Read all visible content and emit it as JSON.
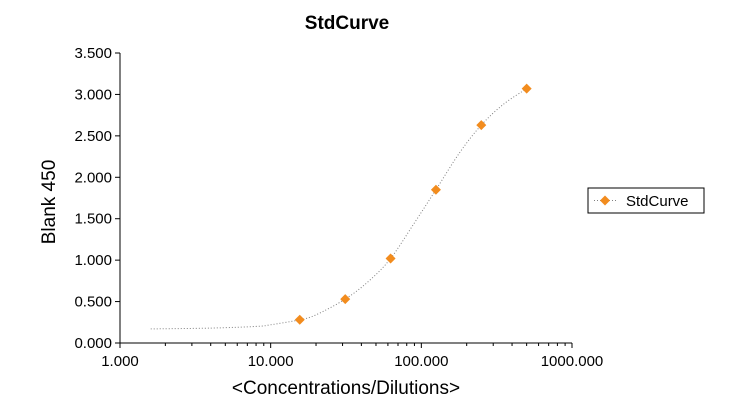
{
  "chart_data": {
    "type": "scatter",
    "title": "StdCurve",
    "xlabel": "<Concentrations/Dilutions>",
    "ylabel": "Blank 450",
    "x_scale": "log",
    "xlim": [
      1,
      1000
    ],
    "ylim": [
      0,
      3.5
    ],
    "x_ticks": [
      1,
      10,
      100,
      1000
    ],
    "x_tick_labels": [
      "1.000",
      "10.000",
      "100.000",
      "1000.000"
    ],
    "y_ticks": [
      0,
      0.5,
      1,
      1.5,
      2,
      2.5,
      3,
      3.5
    ],
    "y_tick_labels": [
      "0.000",
      "0.500",
      "1.000",
      "1.500",
      "2.000",
      "2.500",
      "3.000",
      "3.500"
    ],
    "grid": false,
    "legend_position": "right",
    "series": [
      {
        "name": "StdCurve",
        "color": "#F28C1E",
        "marker": "diamond",
        "x": [
          15.6,
          31.25,
          62.5,
          125,
          250,
          500
        ],
        "y": [
          0.28,
          0.53,
          1.02,
          1.85,
          2.63,
          3.07
        ]
      }
    ],
    "fit_curve": {
      "style": "dotted",
      "color": "#808080",
      "x": [
        1.6,
        4,
        8,
        10,
        15.6,
        20,
        31.25,
        45,
        62.5,
        90,
        125,
        180,
        250,
        350,
        500
      ],
      "y": [
        0.17,
        0.18,
        0.2,
        0.22,
        0.28,
        0.34,
        0.53,
        0.75,
        1.02,
        1.45,
        1.85,
        2.3,
        2.63,
        2.88,
        3.07
      ]
    }
  }
}
